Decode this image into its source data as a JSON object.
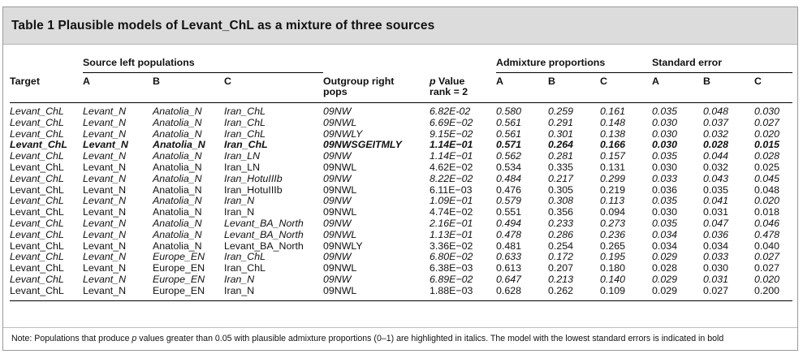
{
  "title": "Table 1 Plausible models of Levant_ChL as a mixture of three sources",
  "headers": {
    "group_source": "Source left populations",
    "group_admixture": "Admixture proportions",
    "group_se": "Standard error",
    "target": "Target",
    "a": "A",
    "b": "B",
    "c": "C",
    "outgroup_line1": "Outgroup right",
    "outgroup_line2": "pops",
    "pvalue_p": "p",
    "pvalue_rest": " Value",
    "pvalue_line2": "rank = 2",
    "adm_a": "A",
    "adm_b": "B",
    "adm_c": "C",
    "se_a": "A",
    "se_b": "B",
    "se_c": "C"
  },
  "rows": [
    {
      "style": "it",
      "target": "Levant_ChL",
      "a": "Levant_N",
      "b": "Anatolia_N",
      "c": "Iran_ChL",
      "out": "09NW",
      "p": "6.82E-02",
      "pa": "0.580",
      "pb": "0.259",
      "pc": "0.161",
      "sa": "0.035",
      "sb": "0.048",
      "sc": "0.030"
    },
    {
      "style": "it",
      "target": "Levant_ChL",
      "a": "Levant_N",
      "b": "Anatolia_N",
      "c": "Iran_ChL",
      "out": "09NWL",
      "p": "6.69E−02",
      "pa": "0.561",
      "pb": "0.291",
      "pc": "0.148",
      "sa": "0.030",
      "sb": "0.037",
      "sc": "0.027"
    },
    {
      "style": "it",
      "target": "Levant_ChL",
      "a": "Levant_N",
      "b": "Anatolia_N",
      "c": "Iran_ChL",
      "out": "09NWLY",
      "p": "9.15E−02",
      "pa": "0.561",
      "pb": "0.301",
      "pc": "0.138",
      "sa": "0.030",
      "sb": "0.032",
      "sc": "0.020"
    },
    {
      "style": "bold",
      "target": "Levant_ChL",
      "a": "Levant_N",
      "b": "Anatolia_N",
      "c": "Iran_ChL",
      "out": "09NWSGEITMLY",
      "p": "1.14E−01",
      "pa": "0.571",
      "pb": "0.264",
      "pc": "0.166",
      "sa": "0.030",
      "sb": "0.028",
      "sc": "0.015"
    },
    {
      "style": "it",
      "target": "Levant_ChL",
      "a": "Levant_N",
      "b": "Anatolia_N",
      "c": "Iran_LN",
      "out": "09NW",
      "p": "1.14E−01",
      "pa": "0.562",
      "pb": "0.281",
      "pc": "0.157",
      "sa": "0.035",
      "sb": "0.044",
      "sc": "0.028"
    },
    {
      "style": "",
      "target": "Levant_ChL",
      "a": "Levant_N",
      "b": "Anatolia_N",
      "c": "Iran_LN",
      "out": "09NWL",
      "p": "4.62E−02",
      "pa": "0.534",
      "pb": "0.335",
      "pc": "0.131",
      "sa": "0.030",
      "sb": "0.032",
      "sc": "0.025"
    },
    {
      "style": "it",
      "target": "Levant_ChL",
      "a": "Levant_N",
      "b": "Anatolia_N",
      "c": "Iran_HotuIIIb",
      "out": "09NW",
      "p": "8.22E−02",
      "pa": "0.484",
      "pb": "0.217",
      "pc": "0.299",
      "sa": "0.033",
      "sb": "0.043",
      "sc": "0.045"
    },
    {
      "style": "",
      "target": "Levant_ChL",
      "a": "Levant_N",
      "b": "Anatolia_N",
      "c": "Iran_HotuIIIb",
      "out": "09NWL",
      "p": "6.11E−03",
      "pa": "0.476",
      "pb": "0.305",
      "pc": "0.219",
      "sa": "0.036",
      "sb": "0.035",
      "sc": "0.048"
    },
    {
      "style": "it",
      "target": "Levant_ChL",
      "a": "Levant_N",
      "b": "Anatolia_N",
      "c": "Iran_N",
      "out": "09NW",
      "p": "1.09E−01",
      "pa": "0.579",
      "pb": "0.308",
      "pc": "0.113",
      "sa": "0.035",
      "sb": "0.041",
      "sc": "0.020"
    },
    {
      "style": "",
      "target": "Levant_ChL",
      "a": "Levant_N",
      "b": "Anatolia_N",
      "c": "Iran_N",
      "out": "09NWL",
      "p": "4.74E−02",
      "pa": "0.551",
      "pb": "0.356",
      "pc": "0.094",
      "sa": "0.030",
      "sb": "0.031",
      "sc": "0.018"
    },
    {
      "style": "it",
      "target": "Levant_ChL",
      "a": "Levant_N",
      "b": "Anatolia_N",
      "c": "Levant_BA_North",
      "out": "09NW",
      "p": "2.16E−01",
      "pa": "0.494",
      "pb": "0.233",
      "pc": "0.273",
      "sa": "0.035",
      "sb": "0.047",
      "sc": "0.046"
    },
    {
      "style": "it",
      "target": "Levant_ChL",
      "a": "Levant_N",
      "b": "Anatolia_N",
      "c": "Levant_BA_North",
      "out": "09NWL",
      "p": "1.13E−01",
      "pa": "0.478",
      "pb": "0.286",
      "pc": "0.236",
      "sa": "0.034",
      "sb": "0.036",
      "sc": "0.478"
    },
    {
      "style": "",
      "target": "Levant_ChL",
      "a": "Levant_N",
      "b": "Anatolia_N",
      "c": "Levant_BA_North",
      "out": "09NWLY",
      "p": "3.36E−02",
      "pa": "0.481",
      "pb": "0.254",
      "pc": "0.265",
      "sa": "0.034",
      "sb": "0.034",
      "sc": "0.040"
    },
    {
      "style": "it",
      "target": "Levant_ChL",
      "a": "Levant_N",
      "b": "Europe_EN",
      "c": "Iran_ChL",
      "out": "09NW",
      "p": "6.80E−02",
      "pa": "0.633",
      "pb": "0.172",
      "pc": "0.195",
      "sa": "0.029",
      "sb": "0.033",
      "sc": "0.027"
    },
    {
      "style": "",
      "target": "Levant_ChL",
      "a": "Levant_N",
      "b": "Europe_EN",
      "c": "Iran_ChL",
      "out": "09NWL",
      "p": "6.38E−03",
      "pa": "0.613",
      "pb": "0.207",
      "pc": "0.180",
      "sa": "0.028",
      "sb": "0.030",
      "sc": "0.027"
    },
    {
      "style": "it",
      "target": "Levant_ChL",
      "a": "Levant_N",
      "b": "Europe_EN",
      "c": "Iran_N",
      "out": "09NW",
      "p": "6.89E−02",
      "pa": "0.647",
      "pb": "0.213",
      "pc": "0.140",
      "sa": "0.029",
      "sb": "0.031",
      "sc": "0.020"
    },
    {
      "style": "",
      "target": "Levant_ChL",
      "a": "Levant_N",
      "b": "Europe_EN",
      "c": "Iran_N",
      "out": "09NWL",
      "p": "1.88E−03",
      "pa": "0.628",
      "pb": "0.262",
      "pc": "0.109",
      "sa": "0.029",
      "sb": "0.027",
      "sc": "0.200"
    }
  ],
  "note_prefix": "Note: Populations that produce ",
  "note_p": "p",
  "note_suffix": " values greater than 0.05 with plausible admixture proportions (0–1) are highlighted in italics. The model with the lowest standard errors is indicated in bold"
}
